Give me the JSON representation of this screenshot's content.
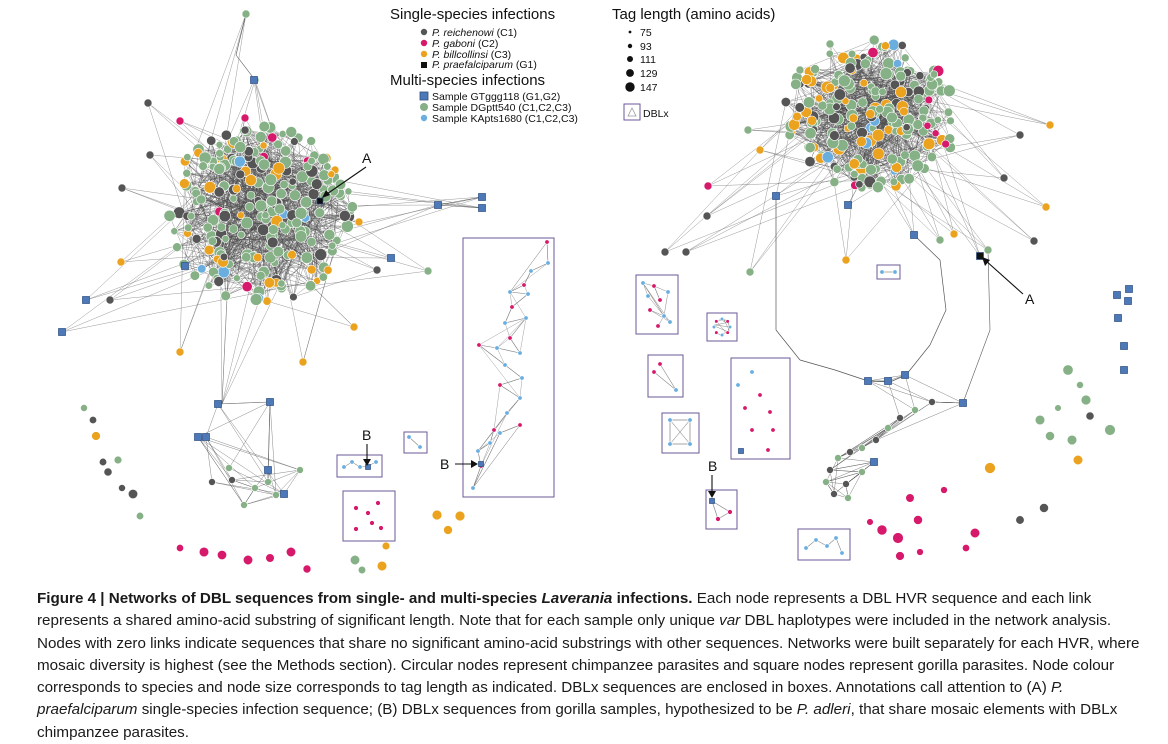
{
  "legend": {
    "single_title": "Single-species infections",
    "single_items": [
      {
        "species": "P. reichenowi",
        "code": "(C1)",
        "color": "#555555",
        "shape": "circle"
      },
      {
        "species": "P. gaboni",
        "code": "(C2)",
        "color": "#d6196a",
        "shape": "circle"
      },
      {
        "species": "P. billcollinsi",
        "code": "(C3)",
        "color": "#eaa21f",
        "shape": "circle"
      },
      {
        "species": "P. praefalciparum",
        "code": "(G1)",
        "color": "#111111",
        "shape": "square"
      }
    ],
    "multi_title": "Multi-species infections",
    "multi_items": [
      {
        "label": "Sample GTggg118 (G1,G2)",
        "color": "#4e79b8",
        "shape": "square"
      },
      {
        "label": "Sample DGptt540 (C1,C2,C3)",
        "color": "#86b086",
        "shape": "circle"
      },
      {
        "label": "Sample KApts1680 (C1,C2,C3)",
        "color": "#6aaee0",
        "shape": "circle"
      }
    ],
    "tag_title": "Tag length (amino acids)",
    "tag_lengths": [
      "75",
      "93",
      "111",
      "129",
      "147"
    ],
    "dblx_label": "DBLx"
  },
  "annotations": {
    "a": "A",
    "b": "B"
  },
  "caption": {
    "fig_label": "Figure 4 | Networks of DBL sequences from single- and multi-species ",
    "fig_label_italic": "Laverania",
    "fig_label_end": " infections.",
    "s1": " Each node represents a DBL HVR sequence and each link represents a shared amino-acid substring of significant length. Note that for each sample only unique ",
    "s1_italic": "var",
    "s2": " DBL haplotypes were included in the network analysis. Nodes with zero links indicate sequences that share no significant amino-acid substrings with other sequences. Networks were built separately for each HVR, where mosaic diversity is highest (see the Methods section). Circular nodes represent chimpanzee parasites and square nodes represent gorilla parasites. Node colour corresponds to species and node size corresponds to tag length as indicated. DBLx sequences are enclosed in boxes. Annotations call attention to (A) ",
    "s2_italic": "P. praefalciparum",
    "s3": " single-species infection sequence; (B) DBLx sequences from gorilla samples, hypothesized to be ",
    "s3_italic": "P. adleri",
    "s4": ", that share mosaic elements with DBLx chimpanzee parasites."
  }
}
